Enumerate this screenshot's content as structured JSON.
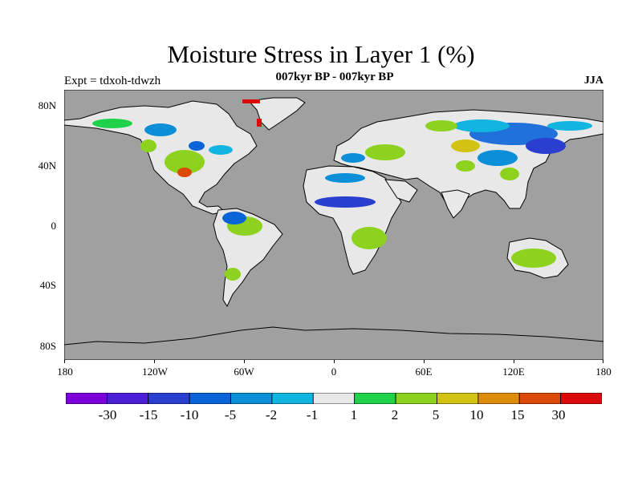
{
  "title": "Moisture Stress in Layer 1 (%)",
  "subtitle": "007kyr BP - 007kyr BP",
  "experiment": "Expt = tdxoh-tdwzh",
  "season": "JJA",
  "latitude_labels": [
    "80N",
    "40N",
    "0",
    "40S",
    "80S"
  ],
  "longitude_labels": [
    "180",
    "120W",
    "60W",
    "0",
    "60E",
    "120E",
    "180"
  ],
  "colorbar": {
    "colors": [
      "#7b00d9",
      "#4b1fd6",
      "#2a3fd0",
      "#0a64d8",
      "#0a8fd8",
      "#12b4e0",
      "#e8e8e8",
      "#1fd24a",
      "#8cd21f",
      "#d2c312",
      "#de8a0a",
      "#dc4a0a",
      "#dc0a0a"
    ],
    "labels": [
      "-30",
      "-15",
      "-10",
      "-5",
      "-2",
      "-1",
      "1",
      "2",
      "5",
      "10",
      "15",
      "30"
    ]
  },
  "colors": {
    "ocean": "#a0a0a0",
    "land_neutral": "#e8e8e8"
  }
}
